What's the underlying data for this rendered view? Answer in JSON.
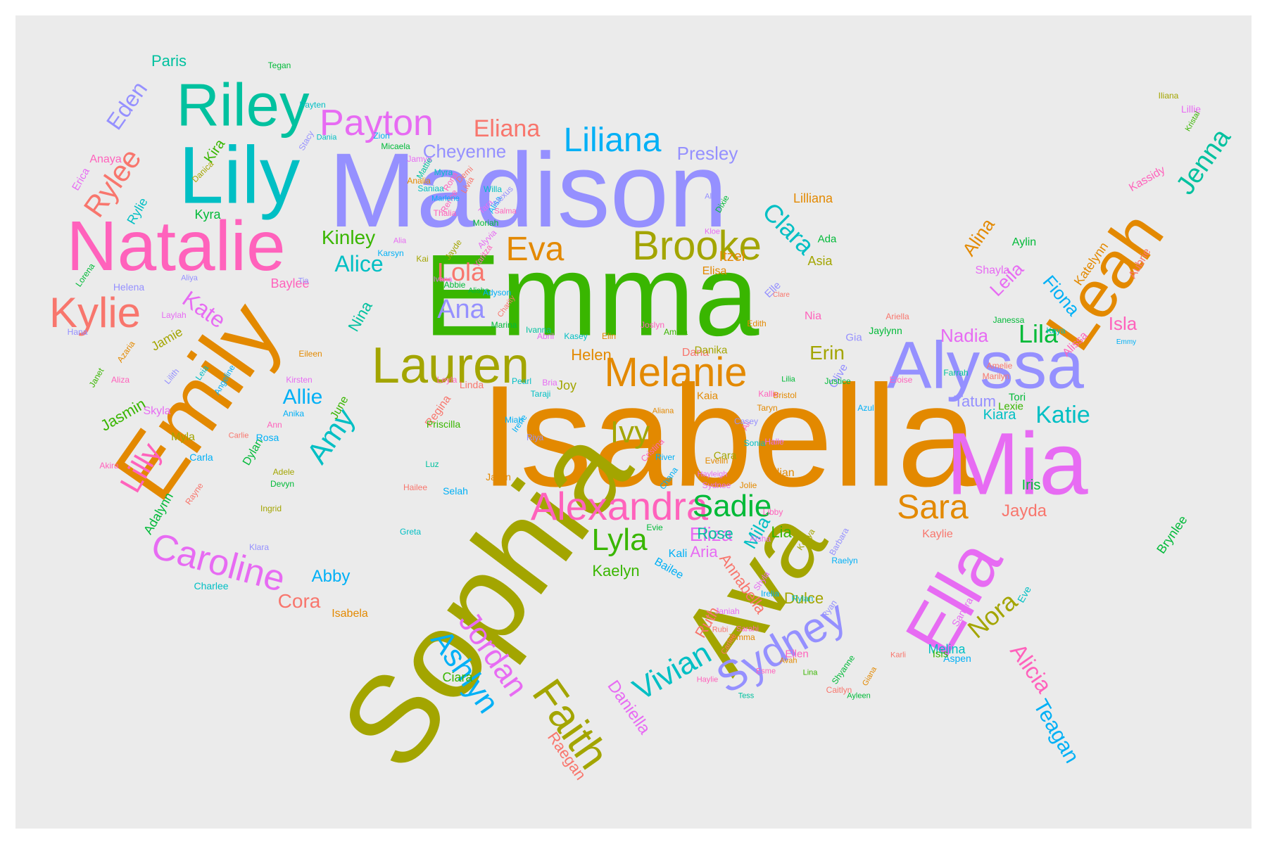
{
  "words": [
    {
      "text": "Isabella",
      "color": "#E38900"
    },
    {
      "text": "Sophia",
      "color": "#A3A500"
    },
    {
      "text": "Emma",
      "color": "#39B600"
    },
    {
      "text": "Madison",
      "color": "#9590FF"
    },
    {
      "text": "Ava",
      "color": "#A3A500"
    },
    {
      "text": "Emily",
      "color": "#E38900"
    },
    {
      "text": "Mia",
      "color": "#E76BF3"
    },
    {
      "text": "Natalie",
      "color": "#FF62BC"
    },
    {
      "text": "Lily",
      "color": "#00BFC4"
    },
    {
      "text": "Ella",
      "color": "#E76BF3"
    },
    {
      "text": "Alyssa",
      "color": "#9590FF"
    },
    {
      "text": "Leah",
      "color": "#E38900"
    },
    {
      "text": "Riley",
      "color": "#00C19F"
    },
    {
      "text": "Lauren",
      "color": "#A3A500"
    },
    {
      "text": "Faith",
      "color": "#A3A500"
    },
    {
      "text": "Melanie",
      "color": "#E38900"
    },
    {
      "text": "Brooke",
      "color": "#A3A500"
    },
    {
      "text": "Alexandra",
      "color": "#FF62BC"
    },
    {
      "text": "Sydney",
      "color": "#9590FF"
    },
    {
      "text": "Kylie",
      "color": "#F8766D"
    },
    {
      "text": "Caroline",
      "color": "#E76BF3"
    },
    {
      "text": "Payton",
      "color": "#E76BF3"
    },
    {
      "text": "Liliana",
      "color": "#00B0F6"
    },
    {
      "text": "Eva",
      "color": "#E38900"
    },
    {
      "text": "Jordan",
      "color": "#E76BF3"
    },
    {
      "text": "Sadie",
      "color": "#00BA38"
    },
    {
      "text": "Lyla",
      "color": "#39B600"
    },
    {
      "text": "Sara",
      "color": "#E38900"
    },
    {
      "text": "Ashlyn",
      "color": "#00B0F6"
    },
    {
      "text": "Vivian",
      "color": "#00BFC4"
    },
    {
      "text": "Eliana",
      "color": "#F8766D"
    },
    {
      "text": "Ana",
      "color": "#9590FF"
    },
    {
      "text": "Jenna",
      "color": "#00C19F"
    },
    {
      "text": "Lilly",
      "color": "#FF62BC"
    },
    {
      "text": "Amy",
      "color": "#00BFC4"
    },
    {
      "text": "Rylee",
      "color": "#F8766D"
    },
    {
      "text": "Clara",
      "color": "#00BFC4"
    },
    {
      "text": "Lola",
      "color": "#F8766D"
    },
    {
      "text": "Nora",
      "color": "#A3A500"
    },
    {
      "text": "Katie",
      "color": "#00BFC4"
    },
    {
      "text": "Lila",
      "color": "#00BA38"
    },
    {
      "text": "Ivy",
      "color": "#A3A500"
    },
    {
      "text": "Cheyenne",
      "color": "#9590FF"
    },
    {
      "text": "Alicia",
      "color": "#FF62BC"
    },
    {
      "text": "Eden",
      "color": "#9590FF"
    },
    {
      "text": "Teagan",
      "color": "#00B0F6"
    },
    {
      "text": "Presley",
      "color": "#9590FF"
    },
    {
      "text": "Allie",
      "color": "#00B0F6"
    },
    {
      "text": "Alice",
      "color": "#00BFC4"
    },
    {
      "text": "Eliza",
      "color": "#E76BF3"
    },
    {
      "text": "Kinley",
      "color": "#39B600"
    },
    {
      "text": "Kate",
      "color": "#E76BF3"
    },
    {
      "text": "Cora",
      "color": "#F8766D"
    },
    {
      "text": "Abby",
      "color": "#00B0F6"
    },
    {
      "text": "Kaelyn",
      "color": "#39B600"
    },
    {
      "text": "Erin",
      "color": "#A3A500"
    },
    {
      "text": "Nadia",
      "color": "#E76BF3"
    },
    {
      "text": "Isla",
      "color": "#FF62BC"
    },
    {
      "text": "Jayda",
      "color": "#F8766D"
    },
    {
      "text": "Leila",
      "color": "#E76BF3"
    },
    {
      "text": "Fiona",
      "color": "#00B0F6"
    },
    {
      "text": "Alina",
      "color": "#E38900"
    },
    {
      "text": "Tatum",
      "color": "#9590FF"
    },
    {
      "text": "Kiara",
      "color": "#00BFC4"
    },
    {
      "text": "Iris",
      "color": "#00BA38"
    },
    {
      "text": "Mila",
      "color": "#00BFC4"
    },
    {
      "text": "Lia",
      "color": "#39B600"
    },
    {
      "text": "Ruth",
      "color": "#F8766D"
    },
    {
      "text": "Rose",
      "color": "#00C19F"
    },
    {
      "text": "Aria",
      "color": "#E76BF3"
    },
    {
      "text": "Dulce",
      "color": "#A3A500"
    },
    {
      "text": "Helen",
      "color": "#E38900"
    },
    {
      "text": "Jasmin",
      "color": "#39B600"
    },
    {
      "text": "Annabella",
      "color": "#F8766D"
    },
    {
      "text": "Daniella",
      "color": "#E76BF3"
    },
    {
      "text": "Raegan",
      "color": "#F8766D"
    },
    {
      "text": "Melina",
      "color": "#00BFC4"
    },
    {
      "text": "Katelynn",
      "color": "#E38900"
    },
    {
      "text": "Brynlee",
      "color": "#00BA38"
    },
    {
      "text": "Itzel",
      "color": "#E38900"
    },
    {
      "text": "Nina",
      "color": "#00C19F"
    },
    {
      "text": "Kira",
      "color": "#39B600"
    },
    {
      "text": "Kyra",
      "color": "#00BA38"
    },
    {
      "text": "Rylie",
      "color": "#00BFC4"
    },
    {
      "text": "Paris",
      "color": "#00C19F"
    },
    {
      "text": "Joy",
      "color": "#A3A500"
    },
    {
      "text": "Kassidy",
      "color": "#FF62BC"
    },
    {
      "text": "Baylee",
      "color": "#FF62BC"
    },
    {
      "text": "Adalynn",
      "color": "#00BA38"
    },
    {
      "text": "Jamie",
      "color": "#A3A500"
    },
    {
      "text": "Ciara",
      "color": "#39B600"
    },
    {
      "text": "Lilliana",
      "color": "#E38900"
    },
    {
      "text": "Aubrie",
      "color": "#F8766D"
    },
    {
      "text": "Nia",
      "color": "#FF62BC"
    },
    {
      "text": "Kaylie",
      "color": "#F8766D"
    },
    {
      "text": "Alissa",
      "color": "#FF62BC"
    },
    {
      "text": "Myla",
      "color": "#A3A500"
    },
    {
      "text": "Dana",
      "color": "#F8766D"
    },
    {
      "text": "Anaya",
      "color": "#FF62BC"
    },
    {
      "text": "Erica",
      "color": "#E76BF3"
    },
    {
      "text": "Elisa",
      "color": "#E38900"
    },
    {
      "text": "Bailee",
      "color": "#00B0F6"
    },
    {
      "text": "Aylin",
      "color": "#00BA38"
    },
    {
      "text": "Kaia",
      "color": "#E38900"
    },
    {
      "text": "Cara",
      "color": "#A3A500"
    },
    {
      "text": "Lilian",
      "color": "#E38900"
    },
    {
      "text": "Shayla",
      "color": "#E76BF3"
    },
    {
      "text": "Danika",
      "color": "#A3A500"
    },
    {
      "text": "Tori",
      "color": "#00BA38"
    },
    {
      "text": "Lexie",
      "color": "#39B600"
    },
    {
      "text": "Elle",
      "color": "#9590FF"
    },
    {
      "text": "Gia",
      "color": "#9590FF"
    },
    {
      "text": "Ada",
      "color": "#00BA38"
    },
    {
      "text": "Dylan",
      "color": "#00BA38"
    },
    {
      "text": "June",
      "color": "#39B600"
    },
    {
      "text": "Asia",
      "color": "#A3A500"
    },
    {
      "text": "Olive",
      "color": "#9590FF"
    },
    {
      "text": "Kali",
      "color": "#00B0F6"
    },
    {
      "text": "Regina",
      "color": "#F8766D"
    },
    {
      "text": "Rosa",
      "color": "#00B0F6"
    },
    {
      "text": "Linda",
      "color": "#F8766D"
    },
    {
      "text": "Selah",
      "color": "#00B0F6"
    },
    {
      "text": "Isabela",
      "color": "#E38900"
    },
    {
      "text": "Ellen",
      "color": "#FF62BC"
    },
    {
      "text": "Aspen",
      "color": "#00B0F6"
    },
    {
      "text": "Isis",
      "color": "#39B600"
    },
    {
      "text": "Jaylynn",
      "color": "#00BA38"
    },
    {
      "text": "Jaylin",
      "color": "#E38900"
    },
    {
      "text": "Priscilla",
      "color": "#39B600"
    },
    {
      "text": "Eve",
      "color": "#00BFC4"
    },
    {
      "text": "Sandra",
      "color": "#E76BF3"
    },
    {
      "text": "Helena",
      "color": "#9590FF"
    },
    {
      "text": "Skyla",
      "color": "#E76BF3"
    },
    {
      "text": "Farrah",
      "color": "#00C19F"
    },
    {
      "text": "Kaya",
      "color": "#00BFC4"
    },
    {
      "text": "Marilyn",
      "color": "#F8766D"
    },
    {
      "text": "Janessa",
      "color": "#00BA38"
    },
    {
      "text": "Amelie",
      "color": "#F8766D"
    },
    {
      "text": "Ariella",
      "color": "#F8766D"
    },
    {
      "text": "Edith",
      "color": "#E38900"
    },
    {
      "text": "Clare",
      "color": "#F8766D"
    },
    {
      "text": "Ali",
      "color": "#FF62BC"
    },
    {
      "text": "Kallie",
      "color": "#FF62BC"
    },
    {
      "text": "Eloise",
      "color": "#FF62BC"
    },
    {
      "text": "Casey",
      "color": "#9590FF"
    },
    {
      "text": "Bristol",
      "color": "#E38900"
    },
    {
      "text": "Halle",
      "color": "#E76BF3"
    },
    {
      "text": "Sonia",
      "color": "#00BFC4"
    },
    {
      "text": "Azul",
      "color": "#00B0F6"
    },
    {
      "text": "Justice",
      "color": "#00BA38"
    },
    {
      "text": "Kristal",
      "color": "#39B600"
    },
    {
      "text": "Lillie",
      "color": "#E76BF3"
    },
    {
      "text": "Iliana",
      "color": "#A3A500"
    },
    {
      "text": "Emmy",
      "color": "#00B0F6"
    },
    {
      "text": "Jolie",
      "color": "#E38900"
    },
    {
      "text": "Greta",
      "color": "#00BFC4"
    },
    {
      "text": "Evie",
      "color": "#00BA38"
    },
    {
      "text": "Aisha",
      "color": "#E76BF3"
    },
    {
      "text": "Hailee",
      "color": "#F8766D"
    },
    {
      "text": "Irene",
      "color": "#00B0F6"
    },
    {
      "text": "Miah",
      "color": "#00B0F6"
    },
    {
      "text": "Luz",
      "color": "#00C19F"
    },
    {
      "text": "Akira",
      "color": "#FF62BC"
    },
    {
      "text": "Anika",
      "color": "#00B0F6"
    },
    {
      "text": "Leyla",
      "color": "#FF62BC"
    },
    {
      "text": "Taraji",
      "color": "#00BFC4"
    },
    {
      "text": "Pearl",
      "color": "#00BFC4"
    },
    {
      "text": "Bria",
      "color": "#E76BF3"
    },
    {
      "text": "Abril",
      "color": "#E76BF3"
    },
    {
      "text": "Elin",
      "color": "#E38900"
    },
    {
      "text": "Kasey",
      "color": "#00BFC4"
    },
    {
      "text": "Ivanna",
      "color": "#00C19F"
    },
    {
      "text": "Marina",
      "color": "#00BA38"
    },
    {
      "text": "Amina",
      "color": "#39B600"
    },
    {
      "text": "Joslyn",
      "color": "#FF62BC"
    },
    {
      "text": "Tegan",
      "color": "#00BA38"
    },
    {
      "text": "Danica",
      "color": "#A3A500"
    },
    {
      "text": "Carla",
      "color": "#00B0F6"
    },
    {
      "text": "Charlee",
      "color": "#00BFC4"
    },
    {
      "text": "Klara",
      "color": "#9590FF"
    },
    {
      "text": "Ingrid",
      "color": "#A3A500"
    },
    {
      "text": "Rayne",
      "color": "#F8766D"
    },
    {
      "text": "Devyn",
      "color": "#00BA38"
    },
    {
      "text": "Adele",
      "color": "#A3A500"
    },
    {
      "text": "Ann",
      "color": "#FF62BC"
    },
    {
      "text": "Carlie",
      "color": "#F8766D"
    },
    {
      "text": "Kirsten",
      "color": "#E76BF3"
    },
    {
      "text": "Aliza",
      "color": "#FF62BC"
    },
    {
      "text": "Janet",
      "color": "#39B600"
    },
    {
      "text": "Lilith",
      "color": "#9590FF"
    },
    {
      "text": "Leia",
      "color": "#00BFC4"
    },
    {
      "text": "Angeline",
      "color": "#00B0F6"
    },
    {
      "text": "Eileen",
      "color": "#E38900"
    },
    {
      "text": "Azaria",
      "color": "#E38900"
    },
    {
      "text": "Hana",
      "color": "#9590FF"
    },
    {
      "text": "Laylah",
      "color": "#E76BF3"
    },
    {
      "text": "Aliya",
      "color": "#9590FF"
    },
    {
      "text": "Tia",
      "color": "#9590FF"
    },
    {
      "text": "Lorena",
      "color": "#00BA38"
    },
    {
      "text": "Stacy",
      "color": "#9590FF"
    },
    {
      "text": "Payten",
      "color": "#00BFC4"
    },
    {
      "text": "Dania",
      "color": "#00BFC4"
    },
    {
      "text": "Micaela",
      "color": "#00BA38"
    },
    {
      "text": "Zion",
      "color": "#00B0F6"
    },
    {
      "text": "Jamya",
      "color": "#E76BF3"
    },
    {
      "text": "Mattie",
      "color": "#00C19F"
    },
    {
      "text": "Myra",
      "color": "#00BFC4"
    },
    {
      "text": "Analia",
      "color": "#E38900"
    },
    {
      "text": "Renee",
      "color": "#FF62BC"
    },
    {
      "text": "Saniaa",
      "color": "#00BFC4"
    },
    {
      "text": "Rona",
      "color": "#FF62BC"
    },
    {
      "text": "Livia",
      "color": "#F8766D"
    },
    {
      "text": "Demi",
      "color": "#F8766D"
    },
    {
      "text": "Tara",
      "color": "#E76BF3"
    },
    {
      "text": "Alisa",
      "color": "#00B0F6"
    },
    {
      "text": "Alexus",
      "color": "#9590FF"
    },
    {
      "text": "Moriah",
      "color": "#00BA38"
    },
    {
      "text": "Marlene",
      "color": "#00B0F6"
    },
    {
      "text": "Willa",
      "color": "#00BFC4"
    },
    {
      "text": "Salma",
      "color": "#FF62BC"
    },
    {
      "text": "Ally",
      "color": "#9590FF"
    },
    {
      "text": "Dixie",
      "color": "#00BA38"
    },
    {
      "text": "Kloe",
      "color": "#E76BF3"
    },
    {
      "text": "Kai",
      "color": "#A3A500"
    },
    {
      "text": "Abbie",
      "color": "#00BA38"
    },
    {
      "text": "Ivana",
      "color": "#E76BF3"
    },
    {
      "text": "Alisha",
      "color": "#00BA38"
    },
    {
      "text": "Thalia",
      "color": "#FF62BC"
    },
    {
      "text": "Alia",
      "color": "#E76BF3"
    },
    {
      "text": "Karsyn",
      "color": "#00B0F6"
    },
    {
      "text": "Charity",
      "color": "#F8766D"
    },
    {
      "text": "Adyson",
      "color": "#00B0F6"
    },
    {
      "text": "Alyvia",
      "color": "#E76BF3"
    },
    {
      "text": "Jayde",
      "color": "#A3A500"
    },
    {
      "text": "Yaritza",
      "color": "#FF62BC"
    },
    {
      "text": "Taryn",
      "color": "#E38900"
    },
    {
      "text": "Evelin",
      "color": "#E38900"
    },
    {
      "text": "Lilia",
      "color": "#00BA38"
    },
    {
      "text": "Aliana",
      "color": "#E38900"
    },
    {
      "text": "Riya",
      "color": "#9590FF"
    },
    {
      "text": "Sydnee",
      "color": "#E76BF3"
    },
    {
      "text": "River",
      "color": "#00B0F6"
    },
    {
      "text": "Chana",
      "color": "#00B0F6"
    },
    {
      "text": "Cristina",
      "color": "#FF62BC"
    },
    {
      "text": "Hayleigh",
      "color": "#E76BF3"
    },
    {
      "text": "Libby",
      "color": "#FF62BC"
    },
    {
      "text": "Kenya",
      "color": "#A3A500"
    },
    {
      "text": "Raelyn",
      "color": "#00B0F6"
    },
    {
      "text": "Barbara",
      "color": "#9590FF"
    },
    {
      "text": "Rylan",
      "color": "#00BFC4"
    },
    {
      "text": "Ryan",
      "color": "#9590FF"
    },
    {
      "text": "Irelia",
      "color": "#00B0F6"
    },
    {
      "text": "Shyla",
      "color": "#E76BF3"
    },
    {
      "text": "Janiah",
      "color": "#E76BF3"
    },
    {
      "text": "Sarahi",
      "color": "#FF62BC"
    },
    {
      "text": "Jemma",
      "color": "#E38900"
    },
    {
      "text": "Rubi",
      "color": "#F8766D"
    },
    {
      "text": "Carlee",
      "color": "#F8766D"
    },
    {
      "text": "Haylie",
      "color": "#FF62BC"
    },
    {
      "text": "Esme",
      "color": "#FF62BC"
    },
    {
      "text": "Avah",
      "color": "#E38900"
    },
    {
      "text": "Tess",
      "color": "#00C19F"
    },
    {
      "text": "Lina",
      "color": "#39B600"
    },
    {
      "text": "Shyanne",
      "color": "#00BA38"
    },
    {
      "text": "Caitlyn",
      "color": "#F8766D"
    },
    {
      "text": "Giana",
      "color": "#E38900"
    },
    {
      "text": "Ayleen",
      "color": "#00BA38"
    },
    {
      "text": "Karli",
      "color": "#F8766D"
    }
  ]
}
